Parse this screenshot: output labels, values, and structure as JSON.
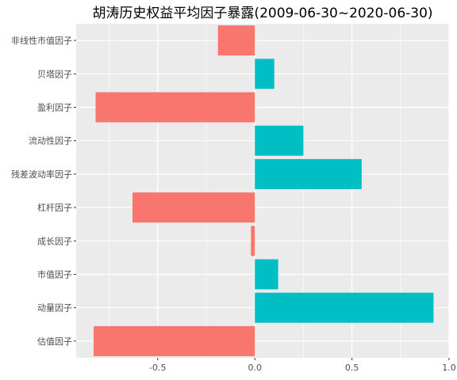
{
  "chart_data": {
    "type": "bar",
    "orientation": "horizontal",
    "title": "胡涛历史权益平均因子暴露(2009-06-30~2020-06-30)",
    "xlabel": "",
    "ylabel": "",
    "categories": [
      "估值因子",
      "动量因子",
      "市值因子",
      "成长因子",
      "杠杆因子",
      "残差波动率因子",
      "流动性因子",
      "盈利因子",
      "贝塔因子",
      "非线性市值因子"
    ],
    "values": [
      -0.83,
      0.92,
      0.12,
      -0.02,
      -0.63,
      0.55,
      0.25,
      -0.82,
      0.1,
      -0.19
    ],
    "xlim": [
      -0.92,
      1.0
    ],
    "x_ticks": [
      -0.5,
      0.0,
      0.5,
      1.0
    ],
    "x_tick_labels": [
      "-0.5",
      "0.0",
      "0.5",
      "1.0"
    ],
    "grid": true,
    "legend": "none",
    "colors": {
      "negative": "#F8766D",
      "positive": "#00BFC4",
      "panel_background": "#EBEBEB",
      "grid_major": "#FFFFFF",
      "axis_text": "#4D4D4D"
    }
  }
}
